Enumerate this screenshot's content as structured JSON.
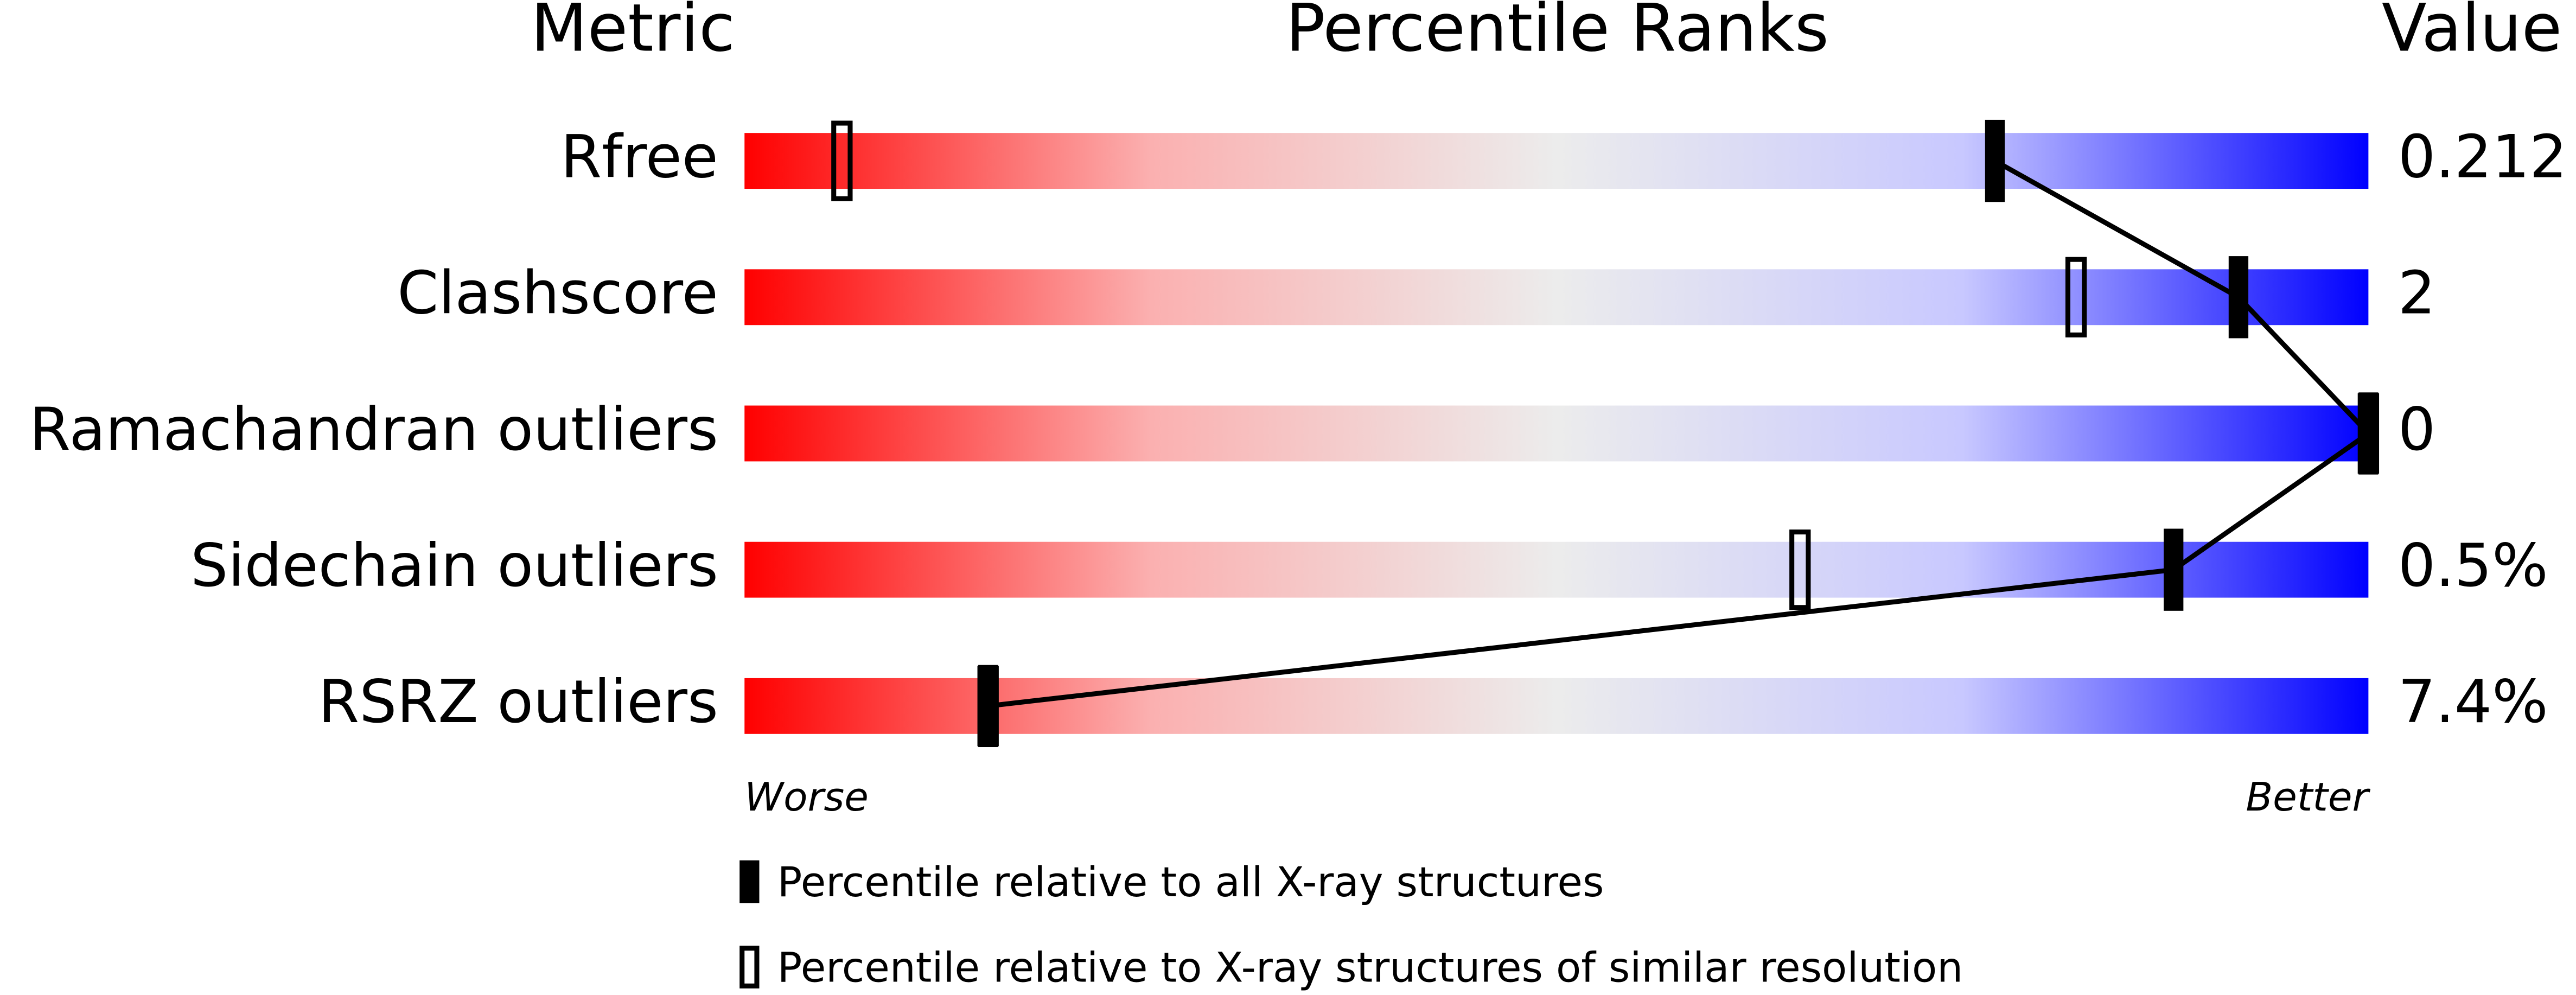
{
  "chart_data": {
    "type": "percentile",
    "headers": {
      "metric": "Metric",
      "ranks": "Percentile Ranks",
      "value": "Value"
    },
    "metrics": [
      "Rfree",
      "Clashscore",
      "Ramachandran outliers",
      "Sidechain outliers",
      "RSRZ outliers"
    ],
    "values": [
      "0.212",
      "2",
      "0",
      "0.5%",
      "7.4%"
    ],
    "series": [
      {
        "name": "Percentile relative to all X-ray structures",
        "color": "#000000",
        "style": "filled",
        "values": [
          77,
          92,
          100,
          88,
          15
        ]
      },
      {
        "name": "Percentile relative to X-ray structures of similar resolution",
        "color": "#000000",
        "style": "open",
        "values": [
          6,
          82,
          100,
          65,
          15
        ]
      }
    ],
    "xlim": [
      0,
      100
    ],
    "worse_label": "Worse",
    "better_label": "Better"
  }
}
